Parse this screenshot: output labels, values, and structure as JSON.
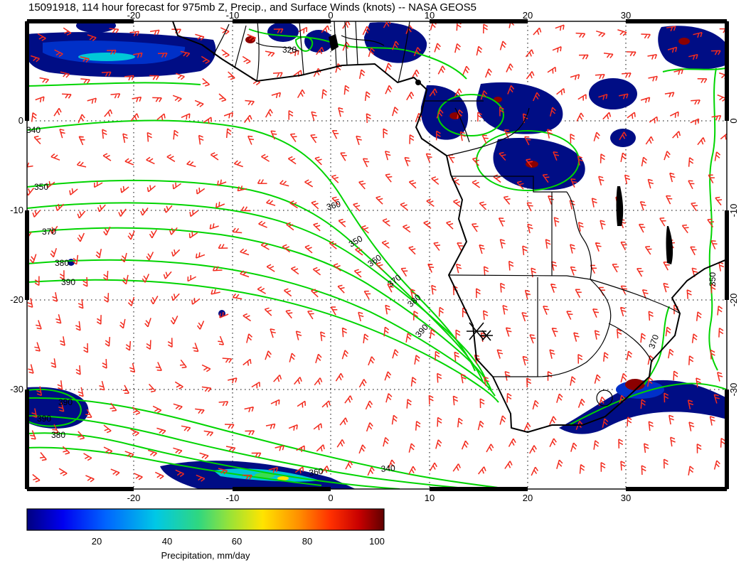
{
  "title": "15091918, 114 hour forecast for 975mb Z, Precip., and Surface Winds (knots) -- NASA GEOS5",
  "axes": {
    "x_ticks": [
      "-20",
      "-10",
      "0",
      "10",
      "20",
      "30"
    ],
    "y_ticks": [
      "0",
      "-10",
      "-20",
      "-30"
    ]
  },
  "contours": {
    "color": "#00d400",
    "labels": {
      "c320": "320",
      "c340": "340",
      "c350": "350",
      "c360": "360",
      "c370": "370",
      "c380": "380",
      "c390": "390"
    }
  },
  "wind": {
    "color": "#f22b1e"
  },
  "precip": {
    "dark_blue": "#000d85",
    "mid_blue": "#0030c8",
    "cyan": "#00c8d7",
    "green": "#3adb52",
    "yellow": "#ffe400",
    "red_core": "#8b0000"
  },
  "colorbar": {
    "label": "Precipitation, mm/day",
    "ticks": [
      "20",
      "40",
      "60",
      "80",
      "100"
    ],
    "gradient": [
      "#000080",
      "#0000f0",
      "#0064ff",
      "#00c8e6",
      "#2fd780",
      "#9be336",
      "#ffe400",
      "#ff9000",
      "#ff3000",
      "#c80000",
      "#600000"
    ]
  },
  "marker": {
    "type": "asterisk"
  }
}
